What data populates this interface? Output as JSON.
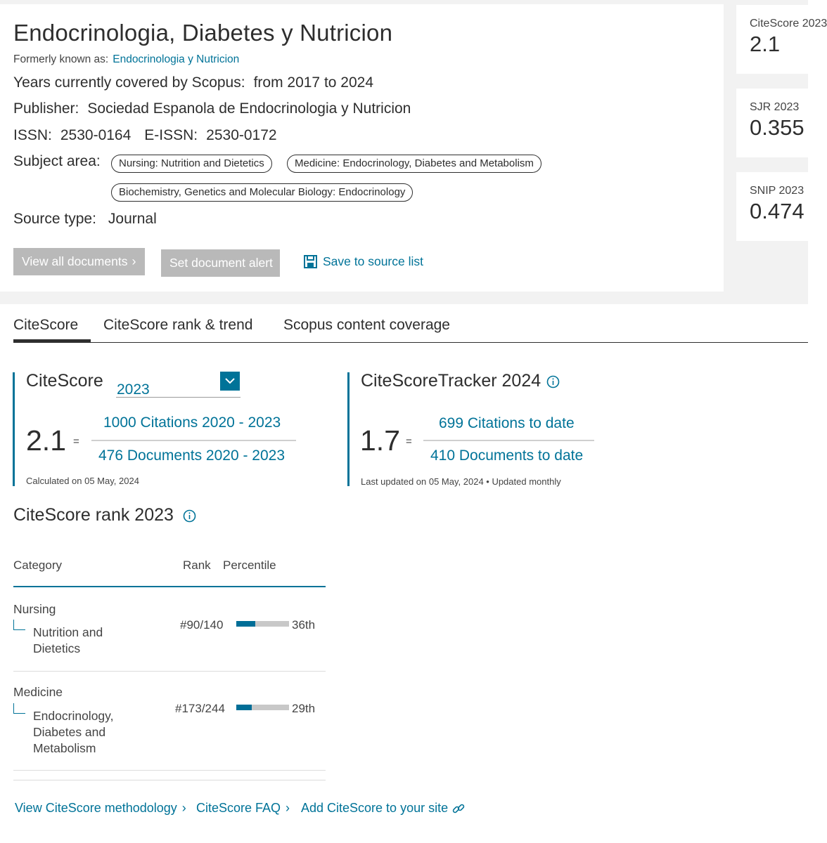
{
  "header": {
    "title": "Endocrinologia, Diabetes y Nutricion",
    "formerly_label": "Formerly known as:",
    "formerly_link": "Endocrinologia y Nutricion",
    "years_label": "Years currently covered by Scopus:",
    "years_value": "from 2017 to 2024",
    "publisher_label": "Publisher:",
    "publisher_value": "Sociedad Espanola de Endocrinologia y Nutricion",
    "issn_label": "ISSN:",
    "issn_value": "2530-0164",
    "eissn_label": "E-ISSN:",
    "eissn_value": "2530-0172",
    "subject_label": "Subject area:",
    "subject_areas": [
      "Nursing: Nutrition and Dietetics",
      "Medicine: Endocrinology, Diabetes and Metabolism",
      "Biochemistry, Genetics and Molecular Biology: Endocrinology"
    ],
    "source_type_label": "Source type:",
    "source_type_value": "Journal"
  },
  "actions": {
    "view_all": "View all documents",
    "set_alert": "Set document alert",
    "save_source": "Save to source list"
  },
  "metrics": {
    "citescore_label": "CiteScore 2023",
    "citescore_value": "2.1",
    "sjr_label": "SJR 2023",
    "sjr_value": "0.355",
    "snip_label": "SNIP 2023",
    "snip_value": "0.474"
  },
  "tabs": [
    {
      "label": "CiteScore",
      "active": true
    },
    {
      "label": "CiteScore rank & trend",
      "active": false
    },
    {
      "label": "Scopus content coverage",
      "active": false
    }
  ],
  "citescore": {
    "title": "CiteScore",
    "year": "2023",
    "value": "2.1",
    "equals": "=",
    "citations": "1000 Citations 2020 - 2023",
    "documents": "476 Documents 2020 - 2023",
    "calculated": "Calculated on 05 May, 2024"
  },
  "tracker": {
    "title": "CiteScoreTracker 2024",
    "value": "1.7",
    "equals": "=",
    "citations": "699 Citations to date",
    "documents": "410 Documents to date",
    "updated": "Last updated on 05 May, 2024 • Updated monthly"
  },
  "rank": {
    "title": "CiteScore rank 2023",
    "col_category": "Category",
    "col_rank": "Rank",
    "col_percentile": "Percentile",
    "rows": [
      {
        "category": "Nursing",
        "subcategory": "Nutrition and Dietetics",
        "rank": "#90/140",
        "percentile_label": "36th",
        "percentile": 36
      },
      {
        "category": "Medicine",
        "subcategory": "Endocrinology, Diabetes and Metabolism",
        "rank": "#173/244",
        "percentile_label": "29th",
        "percentile": 29
      }
    ]
  },
  "footer": {
    "methodology": "View CiteScore methodology",
    "faq": "CiteScore FAQ",
    "add": "Add CiteScore to your site"
  },
  "colors": {
    "accent": "#007398",
    "button_gray": "#b9b9b9",
    "background_gray": "#f2f2f2"
  }
}
